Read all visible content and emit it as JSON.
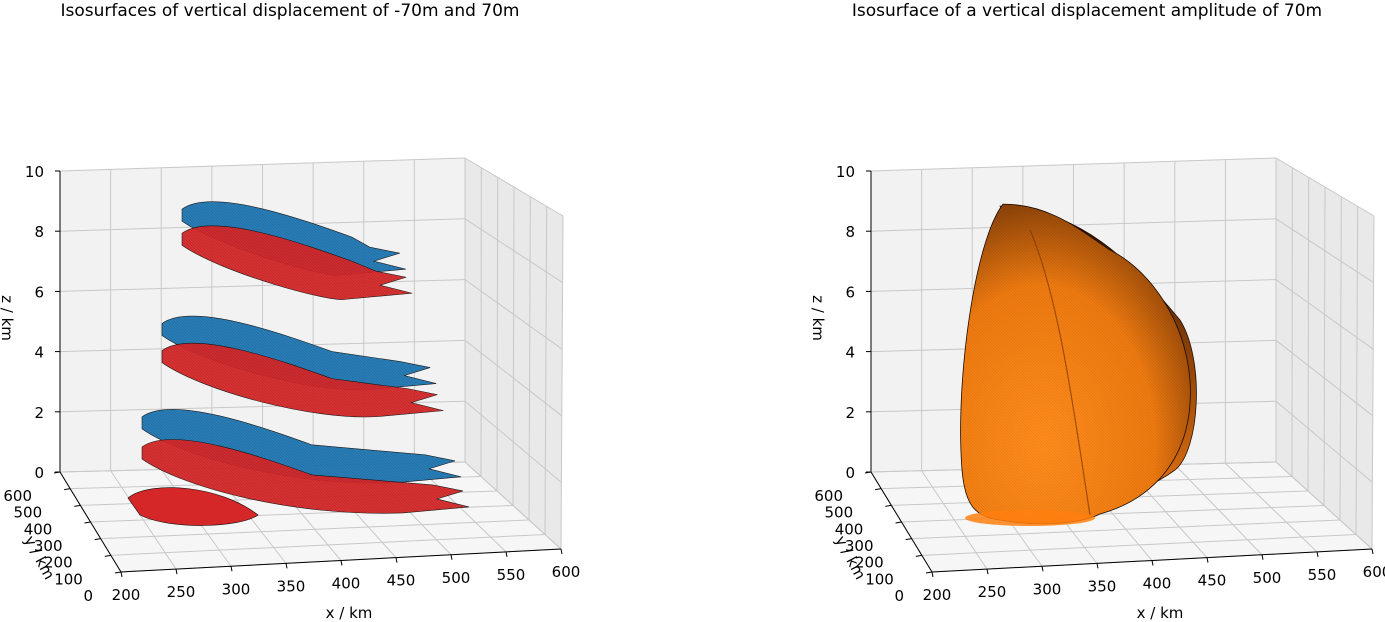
{
  "chart_data": [
    {
      "type": "3d-isosurface",
      "title": "Isosurfaces of vertical displacement of -70m and 70m",
      "xlabel": "x / km",
      "ylabel": "y / km",
      "zlabel": "z / km",
      "xlim": [
        200,
        600
      ],
      "ylim": [
        0,
        600
      ],
      "zlim": [
        0,
        10
      ],
      "x_ticks": [
        "200",
        "250",
        "300",
        "350",
        "400",
        "450",
        "500",
        "550",
        "600"
      ],
      "y_ticks": [
        "0",
        "100",
        "200",
        "300",
        "400",
        "500",
        "600"
      ],
      "z_ticks": [
        "0",
        "2",
        "4",
        "6",
        "8",
        "10"
      ],
      "grid": true,
      "colors": {
        "negative": "#d62728",
        "positive": "#1f77b4"
      },
      "series": [
        {
          "values": [
            0.5,
            3.7,
            7.6
          ]
        },
        {
          "values": [
            1.5,
            4.6,
            8.4
          ]
        }
      ]
    },
    {
      "type": "3d-isosurface",
      "title": "Isosurface of a vertical displacement amplitude of 70m",
      "xlabel": "x / km",
      "ylabel": "y / km",
      "zlabel": "z / km",
      "xlim": [
        200,
        600
      ],
      "ylim": [
        0,
        600
      ],
      "zlim": [
        0,
        10
      ],
      "x_ticks": [
        "200",
        "250",
        "300",
        "350",
        "400",
        "450",
        "500",
        "550",
        "600"
      ],
      "y_ticks": [
        "0",
        "100",
        "200",
        "300",
        "400",
        "500",
        "600"
      ],
      "z_ticks": [
        "0",
        "2",
        "4",
        "6",
        "8",
        "10"
      ],
      "grid": true,
      "colors": {
        "surface": "#ff7f0e"
      },
      "series": [
        {
          "z_range": [
            0,
            8.9
          ]
        }
      ]
    }
  ]
}
